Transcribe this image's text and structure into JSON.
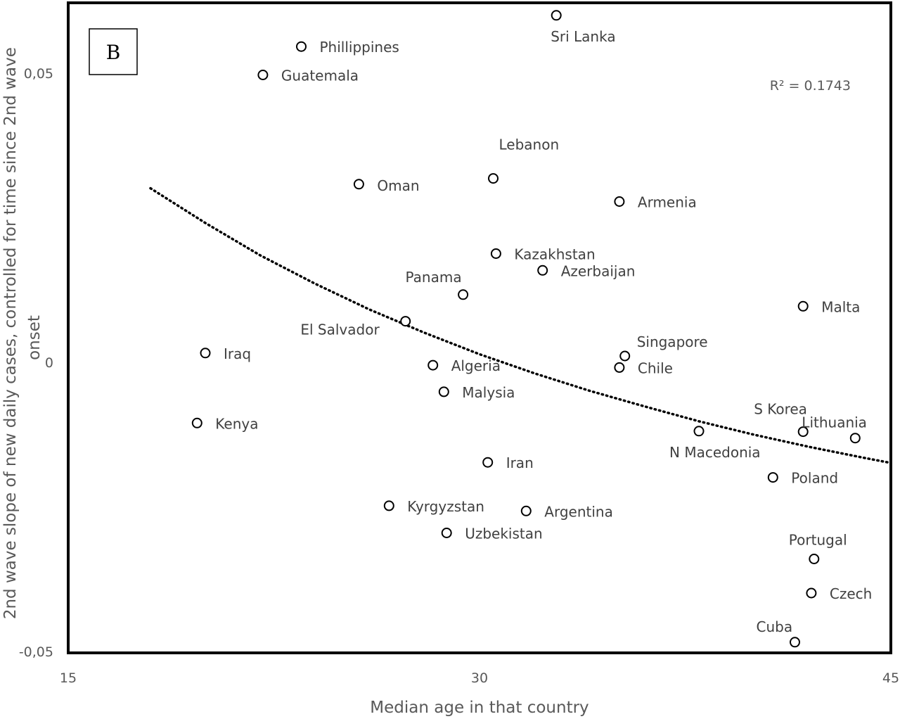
{
  "chart_data": {
    "type": "scatter",
    "panel_label": "B",
    "xlabel": "Median age in that country",
    "ylabel": "2nd wave slope of new daily cases, controlled for time since 2nd wave onset",
    "xlim": [
      15,
      45
    ],
    "ylim": [
      -0.05,
      0.05
    ],
    "x_ticks": [
      {
        "value": 15,
        "label": "15"
      },
      {
        "value": 30,
        "label": "30"
      },
      {
        "value": 45,
        "label": "45"
      }
    ],
    "y_ticks": [
      {
        "value": 0.05,
        "label": "0,05"
      },
      {
        "value": 0,
        "label": "0"
      },
      {
        "value": -0.05,
        "label": "-0,05"
      }
    ],
    "r_squared_label": "R² = 0.1743",
    "trendline": {
      "style": "dotted",
      "points": [
        [
          18.0,
          0.0301
        ],
        [
          20.0,
          0.0241
        ],
        [
          22.0,
          0.0185
        ],
        [
          24.0,
          0.0136
        ],
        [
          26.0,
          0.0091
        ],
        [
          28.0,
          0.0051
        ],
        [
          30.0,
          0.0014
        ],
        [
          32.0,
          -0.0019
        ],
        [
          34.0,
          -0.0049
        ],
        [
          36.0,
          -0.0076
        ],
        [
          38.0,
          -0.0102
        ],
        [
          40.0,
          -0.0125
        ],
        [
          42.0,
          -0.0146
        ],
        [
          44.0,
          -0.0165
        ],
        [
          45.0,
          -0.0174
        ]
      ]
    },
    "points": [
      {
        "label": "Sri Lanka",
        "x": 32.8,
        "y": 0.06
      },
      {
        "label": "Phillippines",
        "x": 23.5,
        "y": 0.0546
      },
      {
        "label": "Guatemala",
        "x": 22.1,
        "y": 0.0497
      },
      {
        "label": "Lebanon",
        "x": 30.5,
        "y": 0.0318
      },
      {
        "label": "Oman",
        "x": 25.6,
        "y": 0.0308
      },
      {
        "label": "Armenia",
        "x": 35.1,
        "y": 0.0278
      },
      {
        "label": "Kazakhstan",
        "x": 30.6,
        "y": 0.0188
      },
      {
        "label": "Azerbaijan",
        "x": 32.3,
        "y": 0.0159
      },
      {
        "label": "Panama",
        "x": 29.4,
        "y": 0.0117
      },
      {
        "label": "Malta",
        "x": 41.8,
        "y": 0.0097
      },
      {
        "label": "El Salvador",
        "x": 27.3,
        "y": 0.0071
      },
      {
        "label": "Iraq",
        "x": 20.0,
        "y": 0.0016
      },
      {
        "label": "Singapore",
        "x": 35.3,
        "y": 0.0011
      },
      {
        "label": "Chile",
        "x": 35.1,
        "y": -0.0009
      },
      {
        "label": "Algeria",
        "x": 28.3,
        "y": -0.0005
      },
      {
        "label": "Malysia",
        "x": 28.7,
        "y": -0.0051
      },
      {
        "label": "Kenya",
        "x": 19.7,
        "y": -0.0105
      },
      {
        "label": "S Korea",
        "x": 41.8,
        "y": -0.012
      },
      {
        "label": "Lithuania",
        "x": 43.7,
        "y": -0.0131
      },
      {
        "label": "N Macedonia",
        "x": 38.0,
        "y": -0.0119
      },
      {
        "label": "Iran",
        "x": 30.3,
        "y": -0.0173
      },
      {
        "label": "Poland",
        "x": 40.7,
        "y": -0.0199
      },
      {
        "label": "Kyrgyzstan",
        "x": 26.7,
        "y": -0.0248
      },
      {
        "label": "Argentina",
        "x": 31.7,
        "y": -0.0257
      },
      {
        "label": "Uzbekistan",
        "x": 28.8,
        "y": -0.0295
      },
      {
        "label": "Portugal",
        "x": 42.2,
        "y": -0.034
      },
      {
        "label": "Czech",
        "x": 42.1,
        "y": -0.0399
      },
      {
        "label": "Cuba",
        "x": 41.5,
        "y": -0.0484
      }
    ]
  }
}
